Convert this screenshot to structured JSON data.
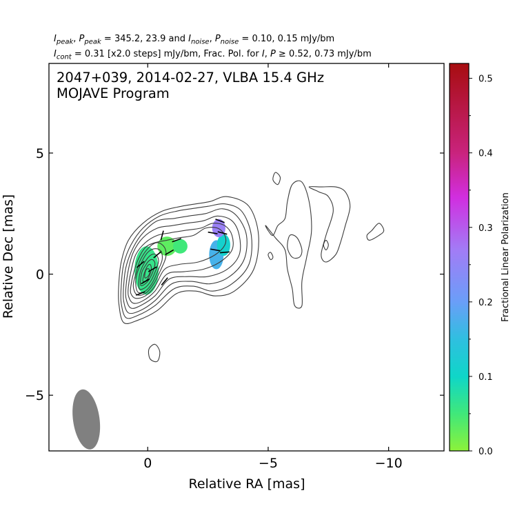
{
  "header": {
    "line1_parts": [
      {
        "t": "I",
        "i": true
      },
      {
        "t": "peak",
        "sub": true,
        "i": true
      },
      {
        "t": ", "
      },
      {
        "t": "P",
        "i": true
      },
      {
        "t": "peak",
        "sub": true,
        "i": true
      },
      {
        "t": " = 345.2, 23.9 and "
      },
      {
        "t": "I",
        "i": true
      },
      {
        "t": "noise",
        "sub": true,
        "i": true
      },
      {
        "t": ", "
      },
      {
        "t": "P",
        "i": true
      },
      {
        "t": "noise",
        "sub": true,
        "i": true
      },
      {
        "t": " = 0.10, 0.15 mJy/bm"
      }
    ],
    "line2_parts": [
      {
        "t": "I",
        "i": true
      },
      {
        "t": "cont",
        "sub": true,
        "i": true
      },
      {
        "t": " = 0.31 [x2.0 steps] mJy/bm, Frac. Pol. for "
      },
      {
        "t": "I",
        "i": true
      },
      {
        "t": ", "
      },
      {
        "t": "P",
        "i": true
      },
      {
        "t": " ≥  0.52, 0.73 mJy/bm"
      }
    ]
  },
  "annotation": {
    "line1": "2047+039, 2014-02-27, VLBA 15.4 GHz",
    "line2": "MOJAVE Program"
  },
  "chart_data": {
    "type": "contour",
    "xlabel": "Relative RA [mas]",
    "ylabel": "Relative Dec [mas]",
    "xlim": [
      4.1,
      -12.3
    ],
    "ylim": [
      -7.3,
      8.7
    ],
    "xticks": [
      {
        "v": 0,
        "label": "0"
      },
      {
        "v": -5,
        "label": "−5"
      },
      {
        "v": -10,
        "label": "−10"
      }
    ],
    "yticks": [
      {
        "v": 5,
        "label": "5"
      },
      {
        "v": 0,
        "label": "0"
      },
      {
        "v": -5,
        "label": "−5"
      }
    ],
    "contour_levels": {
      "base_mJy_per_bm": 0.31,
      "step_factor": 2.0,
      "count": 11
    },
    "core": {
      "ra": 0.1,
      "dec": 0.0
    },
    "contours": [
      [
        [
          1.0,
          -2.0
        ],
        [
          0.4,
          -1.9
        ],
        [
          -0.4,
          -1.5
        ],
        [
          -1.2,
          -0.8
        ],
        [
          -2.0,
          -0.7
        ],
        [
          -2.8,
          -0.9
        ],
        [
          -3.6,
          -0.7
        ],
        [
          -4.4,
          0.2
        ],
        [
          -4.6,
          1.6
        ],
        [
          -4.2,
          2.8
        ],
        [
          -3.3,
          3.2
        ],
        [
          -2.6,
          3.0
        ],
        [
          -2.0,
          2.9
        ],
        [
          -1.4,
          2.8
        ],
        [
          -0.6,
          2.6
        ],
        [
          0.2,
          2.1
        ],
        [
          0.8,
          1.4
        ],
        [
          1.1,
          0.5
        ],
        [
          1.2,
          -0.4
        ],
        [
          1.2,
          -1.2
        ]
      ],
      [
        [
          0.9,
          -1.8
        ],
        [
          0.4,
          -1.7
        ],
        [
          -0.3,
          -1.3
        ],
        [
          -1.1,
          -0.6
        ],
        [
          -1.9,
          -0.5
        ],
        [
          -2.7,
          -0.7
        ],
        [
          -3.5,
          -0.4
        ],
        [
          -4.2,
          0.4
        ],
        [
          -4.3,
          1.6
        ],
        [
          -3.9,
          2.6
        ],
        [
          -3.2,
          2.9
        ],
        [
          -2.5,
          2.8
        ],
        [
          -1.8,
          2.7
        ],
        [
          -1.2,
          2.6
        ],
        [
          -0.5,
          2.4
        ],
        [
          0.2,
          1.9
        ],
        [
          0.7,
          1.2
        ],
        [
          1.0,
          0.4
        ],
        [
          1.1,
          -0.5
        ],
        [
          1.1,
          -1.2
        ]
      ],
      [
        [
          0.8,
          -1.6
        ],
        [
          0.3,
          -1.5
        ],
        [
          -0.3,
          -1.1
        ],
        [
          -1.0,
          -0.4
        ],
        [
          -1.8,
          -0.3
        ],
        [
          -2.6,
          -0.4
        ],
        [
          -3.4,
          -0.1
        ],
        [
          -4.0,
          0.6
        ],
        [
          -4.1,
          1.6
        ],
        [
          -3.7,
          2.4
        ],
        [
          -3.1,
          2.7
        ],
        [
          -2.4,
          2.5
        ],
        [
          -1.7,
          2.4
        ],
        [
          -1.1,
          2.3
        ],
        [
          -0.4,
          2.2
        ],
        [
          0.2,
          1.7
        ],
        [
          0.6,
          1.1
        ],
        [
          0.9,
          0.3
        ],
        [
          1.0,
          -0.5
        ],
        [
          1.0,
          -1.1
        ]
      ],
      [
        [
          0.7,
          -1.4
        ],
        [
          0.3,
          -1.3
        ],
        [
          -0.3,
          -0.9
        ],
        [
          -0.9,
          -0.2
        ],
        [
          -1.7,
          -0.1
        ],
        [
          -2.5,
          -0.1
        ],
        [
          -3.3,
          0.2
        ],
        [
          -3.8,
          0.8
        ],
        [
          -3.8,
          1.6
        ],
        [
          -3.5,
          2.2
        ],
        [
          -2.9,
          2.4
        ],
        [
          -2.3,
          2.2
        ],
        [
          -1.6,
          2.1
        ],
        [
          -1.0,
          2.0
        ],
        [
          -0.4,
          1.9
        ],
        [
          0.2,
          1.5
        ],
        [
          0.6,
          0.9
        ],
        [
          0.8,
          0.2
        ],
        [
          0.9,
          -0.5
        ],
        [
          0.9,
          -1.0
        ]
      ],
      [
        [
          0.6,
          -1.2
        ],
        [
          0.2,
          -1.1
        ],
        [
          -0.3,
          -0.7
        ],
        [
          -0.8,
          0.0
        ],
        [
          -1.5,
          0.1
        ],
        [
          -2.3,
          0.2
        ],
        [
          -3.0,
          0.5
        ],
        [
          -3.5,
          1.0
        ],
        [
          -3.5,
          1.6
        ],
        [
          -3.2,
          2.0
        ],
        [
          -2.7,
          2.1
        ],
        [
          -2.2,
          1.9
        ],
        [
          -1.5,
          1.8
        ],
        [
          -0.9,
          1.7
        ],
        [
          -0.4,
          1.6
        ],
        [
          0.1,
          1.3
        ],
        [
          0.5,
          0.8
        ],
        [
          0.7,
          0.1
        ],
        [
          0.8,
          -0.5
        ],
        [
          0.8,
          -0.9
        ]
      ],
      [
        [
          0.5,
          -1.0
        ],
        [
          0.1,
          -0.9
        ],
        [
          -0.3,
          -0.5
        ],
        [
          -0.7,
          0.2
        ],
        [
          -1.3,
          0.4
        ],
        [
          -2.1,
          0.5
        ],
        [
          -2.8,
          0.8
        ],
        [
          -3.2,
          1.2
        ],
        [
          -3.2,
          1.6
        ],
        [
          -2.9,
          1.9
        ],
        [
          -2.4,
          1.9
        ],
        [
          -1.9,
          1.6
        ],
        [
          -1.3,
          1.5
        ],
        [
          -0.8,
          1.4
        ],
        [
          -0.3,
          1.3
        ],
        [
          0.1,
          1.1
        ],
        [
          0.4,
          0.6
        ],
        [
          0.6,
          0.0
        ],
        [
          0.7,
          -0.5
        ],
        [
          0.7,
          -0.8
        ]
      ],
      [
        [
          0.45,
          -0.85
        ],
        [
          0.1,
          -0.8
        ],
        [
          -0.25,
          -0.4
        ],
        [
          -0.55,
          0.2
        ],
        [
          -0.75,
          0.7
        ],
        [
          -0.7,
          1.1
        ],
        [
          -0.4,
          1.3
        ],
        [
          -0.05,
          1.1
        ],
        [
          0.3,
          0.6
        ],
        [
          0.5,
          0.0
        ],
        [
          0.6,
          -0.5
        ]
      ],
      [
        [
          0.4,
          -0.75
        ],
        [
          0.1,
          -0.7
        ],
        [
          -0.2,
          -0.35
        ],
        [
          -0.45,
          0.2
        ],
        [
          -0.6,
          0.6
        ],
        [
          -0.55,
          0.95
        ],
        [
          -0.3,
          1.05
        ],
        [
          0.0,
          0.9
        ],
        [
          0.25,
          0.5
        ],
        [
          0.45,
          0.0
        ],
        [
          0.5,
          -0.4
        ]
      ],
      [
        [
          0.35,
          -0.6
        ],
        [
          0.1,
          -0.55
        ],
        [
          -0.15,
          -0.25
        ],
        [
          -0.35,
          0.2
        ],
        [
          -0.45,
          0.55
        ],
        [
          -0.35,
          0.8
        ],
        [
          -0.15,
          0.8
        ],
        [
          0.05,
          0.6
        ],
        [
          0.25,
          0.25
        ],
        [
          0.35,
          -0.1
        ]
      ],
      [
        [
          0.3,
          -0.45
        ],
        [
          0.1,
          -0.4
        ],
        [
          -0.1,
          -0.15
        ],
        [
          -0.25,
          0.2
        ],
        [
          -0.3,
          0.45
        ],
        [
          -0.2,
          0.6
        ],
        [
          -0.05,
          0.55
        ],
        [
          0.1,
          0.35
        ],
        [
          0.25,
          0.05
        ]
      ],
      [
        [
          0.2,
          -0.3
        ],
        [
          0.05,
          -0.25
        ],
        [
          -0.1,
          0.0
        ],
        [
          -0.15,
          0.25
        ],
        [
          -0.1,
          0.4
        ],
        [
          0.0,
          0.35
        ],
        [
          0.1,
          0.15
        ],
        [
          0.18,
          -0.1
        ]
      ],
      [
        [
          0.12,
          -0.15
        ],
        [
          0.0,
          -0.1
        ],
        [
          -0.08,
          0.05
        ],
        [
          -0.06,
          0.2
        ],
        [
          0.02,
          0.22
        ],
        [
          0.1,
          0.1
        ]
      ],
      [
        [
          -4.9,
          2.0
        ],
        [
          -5.3,
          1.5
        ],
        [
          -5.7,
          1.0
        ],
        [
          -5.8,
          0.2
        ],
        [
          -6.0,
          -0.6
        ],
        [
          -6.1,
          -1.3
        ],
        [
          -6.4,
          -1.3
        ],
        [
          -6.4,
          -0.3
        ],
        [
          -6.6,
          0.7
        ],
        [
          -6.8,
          1.8
        ],
        [
          -6.7,
          3.0
        ],
        [
          -6.4,
          3.8
        ],
        [
          -6.0,
          3.7
        ],
        [
          -5.8,
          3.0
        ],
        [
          -5.7,
          2.3
        ],
        [
          -5.4,
          2.0
        ],
        [
          -5.2,
          1.6
        ],
        [
          -5.0,
          1.8
        ]
      ],
      [
        [
          -6.7,
          3.6
        ],
        [
          -7.1,
          3.4
        ],
        [
          -7.5,
          3.2
        ],
        [
          -7.7,
          2.6
        ],
        [
          -7.4,
          1.6
        ],
        [
          -7.2,
          0.8
        ],
        [
          -7.4,
          0.5
        ],
        [
          -7.8,
          0.8
        ],
        [
          -8.0,
          1.3
        ],
        [
          -8.2,
          2.0
        ],
        [
          -8.4,
          2.8
        ],
        [
          -8.2,
          3.4
        ],
        [
          -7.8,
          3.6
        ],
        [
          -7.2,
          3.6
        ]
      ],
      [
        [
          -5.9,
          1.6
        ],
        [
          -6.2,
          1.5
        ],
        [
          -6.4,
          1.0
        ],
        [
          -6.3,
          0.7
        ],
        [
          -6.0,
          0.7
        ],
        [
          -5.8,
          1.1
        ]
      ],
      [
        [
          -7.4,
          1.4
        ],
        [
          -7.5,
          1.2
        ],
        [
          -7.4,
          1.0
        ],
        [
          -7.3,
          1.2
        ]
      ],
      [
        [
          -9.2,
          1.4
        ],
        [
          -9.6,
          1.6
        ],
        [
          -9.8,
          1.8
        ],
        [
          -9.6,
          2.1
        ],
        [
          -9.3,
          1.8
        ],
        [
          -9.1,
          1.6
        ]
      ],
      [
        [
          -5.3,
          4.2
        ],
        [
          -5.5,
          4.0
        ],
        [
          -5.4,
          3.7
        ],
        [
          -5.2,
          3.9
        ]
      ],
      [
        [
          -5.1,
          0.9
        ],
        [
          -5.2,
          0.7
        ],
        [
          -5.1,
          0.6
        ],
        [
          -5.0,
          0.8
        ]
      ],
      [
        [
          -0.3,
          -2.9
        ],
        [
          -0.5,
          -3.2
        ],
        [
          -0.4,
          -3.6
        ],
        [
          -0.1,
          -3.5
        ],
        [
          -0.05,
          -3.1
        ]
      ]
    ],
    "polarization_patches": [
      {
        "ra": 0.05,
        "dec": 0.15,
        "w": 1.0,
        "h": 2.0,
        "frac": 0.06
      },
      {
        "ra": -0.8,
        "dec": 1.15,
        "w": 0.8,
        "h": 0.8,
        "frac": 0.03
      },
      {
        "ra": -1.35,
        "dec": 1.15,
        "w": 0.6,
        "h": 0.6,
        "frac": 0.05
      },
      {
        "ra": -2.85,
        "dec": 0.8,
        "w": 0.6,
        "h": 1.2,
        "frac": 0.17
      },
      {
        "ra": -3.15,
        "dec": 1.2,
        "w": 0.55,
        "h": 0.9,
        "frac": 0.11
      },
      {
        "ra": -2.95,
        "dec": 1.9,
        "w": 0.55,
        "h": 0.75,
        "frac": 0.26
      }
    ],
    "evpa_vectors": [
      {
        "ra": 0.3,
        "dec": -0.8,
        "angle": 20
      },
      {
        "ra": 0.1,
        "dec": -0.3,
        "angle": 30
      },
      {
        "ra": -0.2,
        "dec": 0.2,
        "angle": 30
      },
      {
        "ra": 0.3,
        "dec": 0.4,
        "angle": 40
      },
      {
        "ra": -0.4,
        "dec": 0.8,
        "angle": 40
      },
      {
        "ra": -0.9,
        "dec": 0.9,
        "angle": 30
      },
      {
        "ra": -0.6,
        "dec": 1.6,
        "angle": 75
      },
      {
        "ra": -1.2,
        "dec": 1.4,
        "angle": 20
      },
      {
        "ra": -0.7,
        "dec": -0.3,
        "angle": 50
      },
      {
        "ra": -2.7,
        "dec": 1.7,
        "angle": -10
      },
      {
        "ra": -3.1,
        "dec": 1.7,
        "angle": -15
      },
      {
        "ra": -2.8,
        "dec": 1.0,
        "angle": -10
      },
      {
        "ra": -3.2,
        "dec": 0.9,
        "angle": 5
      },
      {
        "ra": -3.0,
        "dec": 2.2,
        "angle": -20
      }
    ],
    "beam": {
      "ra": 2.55,
      "dec": -6.0,
      "major": 1.25,
      "minor": 0.55,
      "pa": -8
    },
    "colorbar": {
      "label": "Fractional Linear Polarization",
      "range": [
        0.0,
        0.52
      ],
      "ticks": [
        {
          "v": 0.5,
          "label": "0.5"
        },
        {
          "v": 0.4,
          "label": "0.4"
        },
        {
          "v": 0.3,
          "label": "0.3"
        },
        {
          "v": 0.2,
          "label": "0.2"
        },
        {
          "v": 0.1,
          "label": "0.1"
        },
        {
          "v": 0.0,
          "label": "0.0"
        }
      ],
      "minor_ticks": [
        0.05,
        0.15,
        0.25,
        0.35,
        0.45
      ],
      "colormap_stops": [
        {
          "v": 0.0,
          "color": "#8cf23a"
        },
        {
          "v": 0.05,
          "color": "#40e87a"
        },
        {
          "v": 0.1,
          "color": "#0fd6c8"
        },
        {
          "v": 0.15,
          "color": "#2fbfe0"
        },
        {
          "v": 0.2,
          "color": "#6a9ef8"
        },
        {
          "v": 0.27,
          "color": "#a27cf6"
        },
        {
          "v": 0.34,
          "color": "#d12ee0"
        },
        {
          "v": 0.4,
          "color": "#c9237d"
        },
        {
          "v": 0.52,
          "color": "#a70d10"
        }
      ]
    }
  },
  "colors": {
    "contour": "#3a3a3a",
    "beam": "#808080",
    "vector": "#000000"
  }
}
